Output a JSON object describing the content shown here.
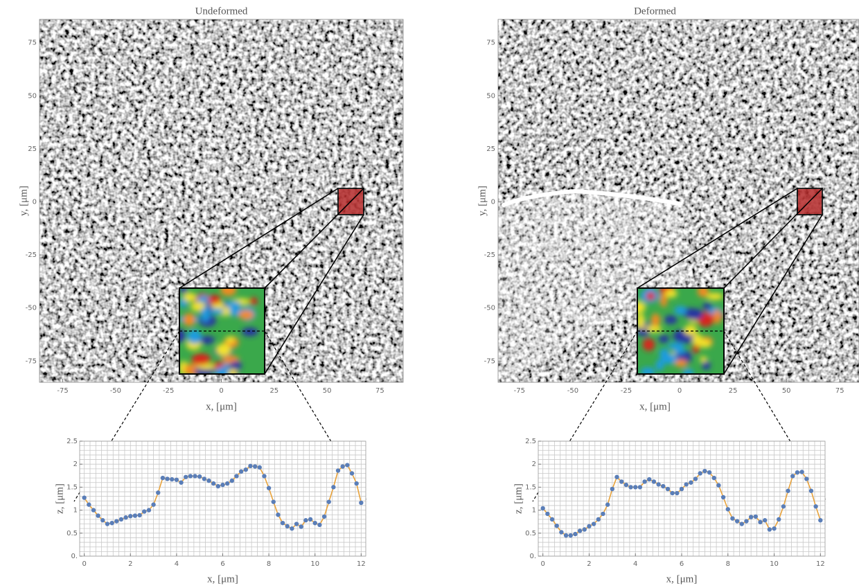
{
  "chart_data": [
    {
      "type": "image",
      "title": "Undeformed",
      "xlabel": "x, [μm]",
      "ylabel": "y, [μm]",
      "xlim": [
        -86,
        86
      ],
      "ylim": [
        -85,
        86
      ],
      "xticks": [
        -75,
        -50,
        -25,
        0,
        25,
        50,
        75
      ],
      "yticks": [
        -75,
        -50,
        -25,
        0,
        25,
        50,
        75
      ]
    },
    {
      "type": "image",
      "title": "Deformed",
      "xlabel": "x, [μm]",
      "ylabel": "y, [μm]",
      "xlim": [
        -85,
        84
      ],
      "ylim": [
        -85,
        86
      ],
      "xticks": [
        -75,
        -50,
        -25,
        0,
        25,
        50,
        75
      ],
      "yticks": [
        -75,
        -50,
        -25,
        0,
        25,
        50,
        75
      ]
    },
    {
      "type": "line",
      "xlabel": "x, [μm]",
      "ylabel": "z, [μm]",
      "xlim": [
        -0.2,
        12.2
      ],
      "ylim": [
        0,
        2.5
      ],
      "xticks": [
        0,
        2,
        4,
        6,
        8,
        10,
        12
      ],
      "yticks": [
        {
          "value": 0,
          "label": "0."
        },
        0.5,
        1,
        1.5,
        2,
        2.5
      ],
      "xgrid": [
        0,
        0.25,
        0.5,
        0.75,
        1,
        1.25,
        1.5,
        1.75,
        2,
        2.25,
        2.5,
        2.75,
        3,
        3.25,
        3.5,
        3.75,
        4,
        4.25,
        4.5,
        4.75,
        5,
        5.25,
        5.5,
        5.75,
        6,
        6.25,
        6.5,
        6.75,
        7,
        7.25,
        7.5,
        7.75,
        8,
        8.25,
        8.5,
        8.75,
        9,
        9.25,
        9.5,
        9.75,
        10,
        10.25,
        10.5,
        10.75,
        11,
        11.25,
        11.5,
        11.75,
        12
      ],
      "ygrid": [
        0,
        0.1,
        0.2,
        0.3,
        0.4,
        0.5,
        0.6,
        0.7,
        0.8,
        0.9,
        1,
        1.1,
        1.2,
        1.3,
        1.4,
        1.5,
        1.6,
        1.7,
        1.8,
        1.9,
        2,
        2.1,
        2.2,
        2.3,
        2.4,
        2.5
      ],
      "line_color": "#e8a23a",
      "point_color": "#5a7eb8",
      "x": [
        0,
        0.2,
        0.4,
        0.6,
        0.8,
        1,
        1.2,
        1.4,
        1.6,
        1.8,
        2,
        2.2,
        2.4,
        2.6,
        2.8,
        3,
        3.2,
        3.4,
        3.6,
        3.8,
        4,
        4.2,
        4.4,
        4.6,
        4.8,
        5,
        5.2,
        5.4,
        5.6,
        5.8,
        6,
        6.2,
        6.4,
        6.6,
        6.8,
        7,
        7.2,
        7.4,
        7.6,
        7.8,
        8,
        8.2,
        8.4,
        8.6,
        8.8,
        9,
        9.2,
        9.4,
        9.6,
        9.8,
        10,
        10.2,
        10.4,
        10.6,
        10.8,
        11,
        11.2,
        11.4,
        11.6,
        11.8,
        12
      ],
      "values": [
        1.27,
        1.12,
        1.0,
        0.88,
        0.78,
        0.7,
        0.72,
        0.76,
        0.8,
        0.84,
        0.87,
        0.88,
        0.89,
        0.97,
        1.0,
        1.12,
        1.38,
        1.7,
        1.68,
        1.67,
        1.66,
        1.6,
        1.72,
        1.74,
        1.74,
        1.73,
        1.68,
        1.64,
        1.58,
        1.52,
        1.55,
        1.58,
        1.64,
        1.74,
        1.84,
        1.88,
        1.96,
        1.95,
        1.93,
        1.74,
        1.48,
        1.18,
        0.9,
        0.72,
        0.65,
        0.6,
        0.7,
        0.64,
        0.78,
        0.8,
        0.72,
        0.68,
        0.86,
        1.18,
        1.5,
        1.86,
        1.95,
        1.98,
        1.8,
        1.58,
        1.16
      ]
    },
    {
      "type": "line",
      "xlabel": "x, [μm]",
      "ylabel": "z, [μm]",
      "xlim": [
        -0.2,
        12.2
      ],
      "ylim": [
        0,
        2.5
      ],
      "xticks": [
        0,
        2,
        4,
        6,
        8,
        10,
        12
      ],
      "yticks": [
        {
          "value": 0,
          "label": "0."
        },
        0.5,
        1,
        1.5,
        2,
        2.5
      ],
      "xgrid": [
        0,
        0.25,
        0.5,
        0.75,
        1,
        1.25,
        1.5,
        1.75,
        2,
        2.25,
        2.5,
        2.75,
        3,
        3.25,
        3.5,
        3.75,
        4,
        4.25,
        4.5,
        4.75,
        5,
        5.25,
        5.5,
        5.75,
        6,
        6.25,
        6.5,
        6.75,
        7,
        7.25,
        7.5,
        7.75,
        8,
        8.25,
        8.5,
        8.75,
        9,
        9.25,
        9.5,
        9.75,
        10,
        10.25,
        10.5,
        10.75,
        11,
        11.25,
        11.5,
        11.75,
        12
      ],
      "ygrid": [
        0,
        0.1,
        0.2,
        0.3,
        0.4,
        0.5,
        0.6,
        0.7,
        0.8,
        0.9,
        1,
        1.1,
        1.2,
        1.3,
        1.4,
        1.5,
        1.6,
        1.7,
        1.8,
        1.9,
        2,
        2.1,
        2.2,
        2.3,
        2.4,
        2.5
      ],
      "line_color": "#e8a23a",
      "point_color": "#5a7eb8",
      "x": [
        0,
        0.2,
        0.4,
        0.6,
        0.8,
        1,
        1.2,
        1.4,
        1.6,
        1.8,
        2,
        2.2,
        2.4,
        2.6,
        2.8,
        3,
        3.2,
        3.4,
        3.6,
        3.8,
        4,
        4.2,
        4.4,
        4.6,
        4.8,
        5,
        5.2,
        5.4,
        5.6,
        5.8,
        6,
        6.2,
        6.4,
        6.6,
        6.8,
        7,
        7.2,
        7.4,
        7.6,
        7.8,
        8,
        8.2,
        8.4,
        8.6,
        8.8,
        9,
        9.2,
        9.4,
        9.6,
        9.8,
        10,
        10.2,
        10.4,
        10.6,
        10.8,
        11,
        11.2,
        11.4,
        11.6,
        11.8,
        12
      ],
      "values": [
        1.04,
        0.92,
        0.8,
        0.66,
        0.52,
        0.45,
        0.45,
        0.48,
        0.55,
        0.58,
        0.65,
        0.7,
        0.8,
        0.92,
        1.12,
        1.46,
        1.72,
        1.62,
        1.55,
        1.5,
        1.5,
        1.5,
        1.62,
        1.67,
        1.62,
        1.56,
        1.52,
        1.46,
        1.37,
        1.37,
        1.46,
        1.56,
        1.6,
        1.68,
        1.8,
        1.85,
        1.82,
        1.7,
        1.54,
        1.28,
        1.02,
        0.82,
        0.76,
        0.7,
        0.76,
        0.85,
        0.86,
        0.74,
        0.78,
        0.58,
        0.6,
        0.8,
        1.08,
        1.42,
        1.74,
        1.82,
        1.83,
        1.68,
        1.42,
        1.08,
        0.78
      ]
    }
  ]
}
